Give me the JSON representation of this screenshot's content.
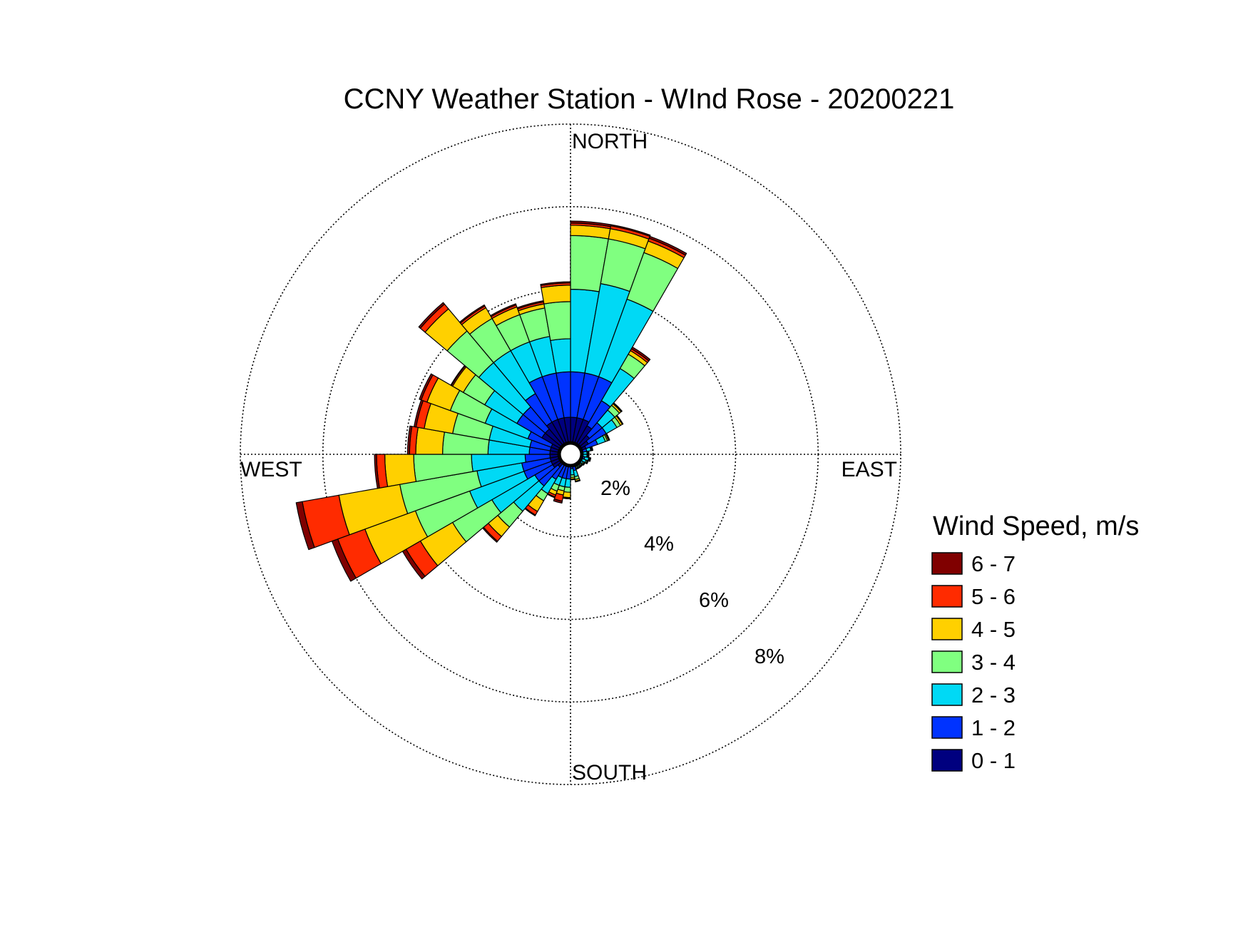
{
  "chart_data": {
    "type": "windrose",
    "title": "CCNY Weather Station - WInd Rose - 20200221",
    "direction_labels": {
      "north": "NORTH",
      "east": "EAST",
      "south": "SOUTH",
      "west": "WEST"
    },
    "rings": [
      2,
      4,
      6,
      8
    ],
    "ring_labels": [
      "2%",
      "4%",
      "6%",
      "8%"
    ],
    "rmax": 8,
    "legend": {
      "title": "Wind Speed, m/s",
      "labels": [
        "6 - 7",
        "5 - 6",
        "4 - 5",
        "3 - 4",
        "2 - 3",
        "1 - 2",
        "0 - 1"
      ]
    },
    "bins": [
      "0 - 1",
      "1 - 2",
      "2 - 3",
      "3 - 4",
      "4 - 5",
      "5 - 6",
      "6 - 7"
    ],
    "colors": [
      "#00007F",
      "#0033FF",
      "#00D9F5",
      "#80FF80",
      "#FFD000",
      "#FF2B00",
      "#800000"
    ],
    "sector_width_deg": 10,
    "sectors": [
      {
        "direction_deg": 5,
        "cumulative_percent": [
          0.9,
          2.0,
          4.0,
          5.3,
          5.55,
          5.6,
          5.65
        ]
      },
      {
        "direction_deg": 15,
        "cumulative_percent": [
          0.9,
          2.0,
          4.2,
          5.3,
          5.55,
          5.62,
          5.65
        ]
      },
      {
        "direction_deg": 25,
        "cumulative_percent": [
          0.9,
          2.0,
          4.0,
          5.2,
          5.5,
          5.57,
          5.62
        ]
      },
      {
        "direction_deg": 35,
        "cumulative_percent": [
          0.8,
          1.5,
          2.4,
          2.8,
          2.9,
          2.95,
          3.0
        ]
      },
      {
        "direction_deg": 45,
        "cumulative_percent": [
          0.6,
          1.0,
          1.4,
          1.55,
          1.6,
          1.62,
          1.63
        ]
      },
      {
        "direction_deg": 55,
        "cumulative_percent": [
          0.5,
          1.0,
          1.3,
          1.4,
          1.45,
          1.46,
          1.47
        ]
      },
      {
        "direction_deg": 65,
        "cumulative_percent": [
          0.4,
          0.7,
          0.9,
          0.95,
          0.98,
          1.0,
          1.01
        ]
      },
      {
        "direction_deg": 75,
        "cumulative_percent": [
          0.25,
          0.4,
          0.5,
          0.52,
          0.53,
          0.54,
          0.55
        ]
      },
      {
        "direction_deg": 85,
        "cumulative_percent": [
          0.2,
          0.3,
          0.4,
          0.42,
          0.43,
          0.44,
          0.45
        ]
      },
      {
        "direction_deg": 95,
        "cumulative_percent": [
          0.2,
          0.3,
          0.4,
          0.42,
          0.43,
          0.44,
          0.45
        ]
      },
      {
        "direction_deg": 105,
        "cumulative_percent": [
          0.2,
          0.35,
          0.45,
          0.47,
          0.48,
          0.49,
          0.5
        ]
      },
      {
        "direction_deg": 115,
        "cumulative_percent": [
          0.2,
          0.3,
          0.4,
          0.43,
          0.44,
          0.45,
          0.46
        ]
      },
      {
        "direction_deg": 125,
        "cumulative_percent": [
          0.2,
          0.3,
          0.35,
          0.38,
          0.39,
          0.4,
          0.41
        ]
      },
      {
        "direction_deg": 135,
        "cumulative_percent": [
          0.2,
          0.28,
          0.33,
          0.36,
          0.37,
          0.38,
          0.39
        ]
      },
      {
        "direction_deg": 145,
        "cumulative_percent": [
          0.2,
          0.28,
          0.33,
          0.36,
          0.37,
          0.38,
          0.39
        ]
      },
      {
        "direction_deg": 155,
        "cumulative_percent": [
          0.2,
          0.28,
          0.33,
          0.36,
          0.37,
          0.38,
          0.39
        ]
      },
      {
        "direction_deg": 165,
        "cumulative_percent": [
          0.25,
          0.4,
          0.55,
          0.62,
          0.66,
          0.67,
          0.68
        ]
      },
      {
        "direction_deg": 175,
        "cumulative_percent": [
          0.2,
          0.35,
          0.5,
          0.56,
          0.6,
          0.61,
          0.62
        ]
      },
      {
        "direction_deg": 185,
        "cumulative_percent": [
          0.3,
          0.6,
          0.8,
          0.92,
          1.05,
          1.07,
          1.08
        ]
      },
      {
        "direction_deg": 195,
        "cumulative_percent": [
          0.3,
          0.6,
          0.8,
          0.9,
          1.0,
          1.15,
          1.2
        ]
      },
      {
        "direction_deg": 205,
        "cumulative_percent": [
          0.3,
          0.6,
          0.8,
          0.95,
          1.05,
          1.1,
          1.12
        ]
      },
      {
        "direction_deg": 215,
        "cumulative_percent": [
          0.3,
          0.7,
          1.1,
          1.3,
          1.6,
          1.7,
          1.72
        ]
      },
      {
        "direction_deg": 225,
        "cumulative_percent": [
          0.4,
          1.0,
          1.8,
          2.3,
          2.6,
          2.75,
          2.78
        ]
      },
      {
        "direction_deg": 235,
        "cumulative_percent": [
          0.5,
          1.0,
          2.2,
          3.3,
          4.2,
          4.6,
          4.7
        ]
      },
      {
        "direction_deg": 245,
        "cumulative_percent": [
          0.5,
          1.2,
          2.6,
          4.0,
          5.3,
          6.0,
          6.15
        ]
      },
      {
        "direction_deg": 255,
        "cumulative_percent": [
          0.5,
          1.2,
          2.3,
          4.2,
          5.7,
          6.6,
          6.75
        ]
      },
      {
        "direction_deg": 265,
        "cumulative_percent": [
          0.5,
          1.1,
          2.4,
          3.8,
          4.5,
          4.7,
          4.75
        ]
      },
      {
        "direction_deg": 275,
        "cumulative_percent": [
          0.5,
          1.0,
          2.0,
          3.1,
          3.75,
          3.9,
          3.95
        ]
      },
      {
        "direction_deg": 285,
        "cumulative_percent": [
          0.5,
          1.0,
          2.0,
          2.9,
          3.6,
          3.8,
          3.85
        ]
      },
      {
        "direction_deg": 295,
        "cumulative_percent": [
          0.5,
          1.1,
          2.2,
          3.1,
          3.7,
          3.85,
          3.9
        ]
      },
      {
        "direction_deg": 305,
        "cumulative_percent": [
          0.8,
          1.5,
          2.4,
          3.0,
          3.3,
          3.33,
          3.35
        ]
      },
      {
        "direction_deg": 315,
        "cumulative_percent": [
          0.8,
          1.5,
          2.9,
          3.9,
          4.6,
          4.75,
          4.8
        ]
      },
      {
        "direction_deg": 325,
        "cumulative_percent": [
          0.9,
          1.7,
          2.9,
          3.8,
          4.1,
          4.15,
          4.18
        ]
      },
      {
        "direction_deg": 335,
        "cumulative_percent": [
          0.9,
          2.0,
          2.9,
          3.6,
          3.8,
          3.85,
          3.88
        ]
      },
      {
        "direction_deg": 345,
        "cumulative_percent": [
          0.9,
          2.0,
          2.9,
          3.6,
          3.7,
          3.75,
          3.78
        ]
      },
      {
        "direction_deg": 355,
        "cumulative_percent": [
          0.9,
          2.0,
          2.8,
          3.7,
          4.1,
          4.15,
          4.18
        ]
      }
    ]
  }
}
